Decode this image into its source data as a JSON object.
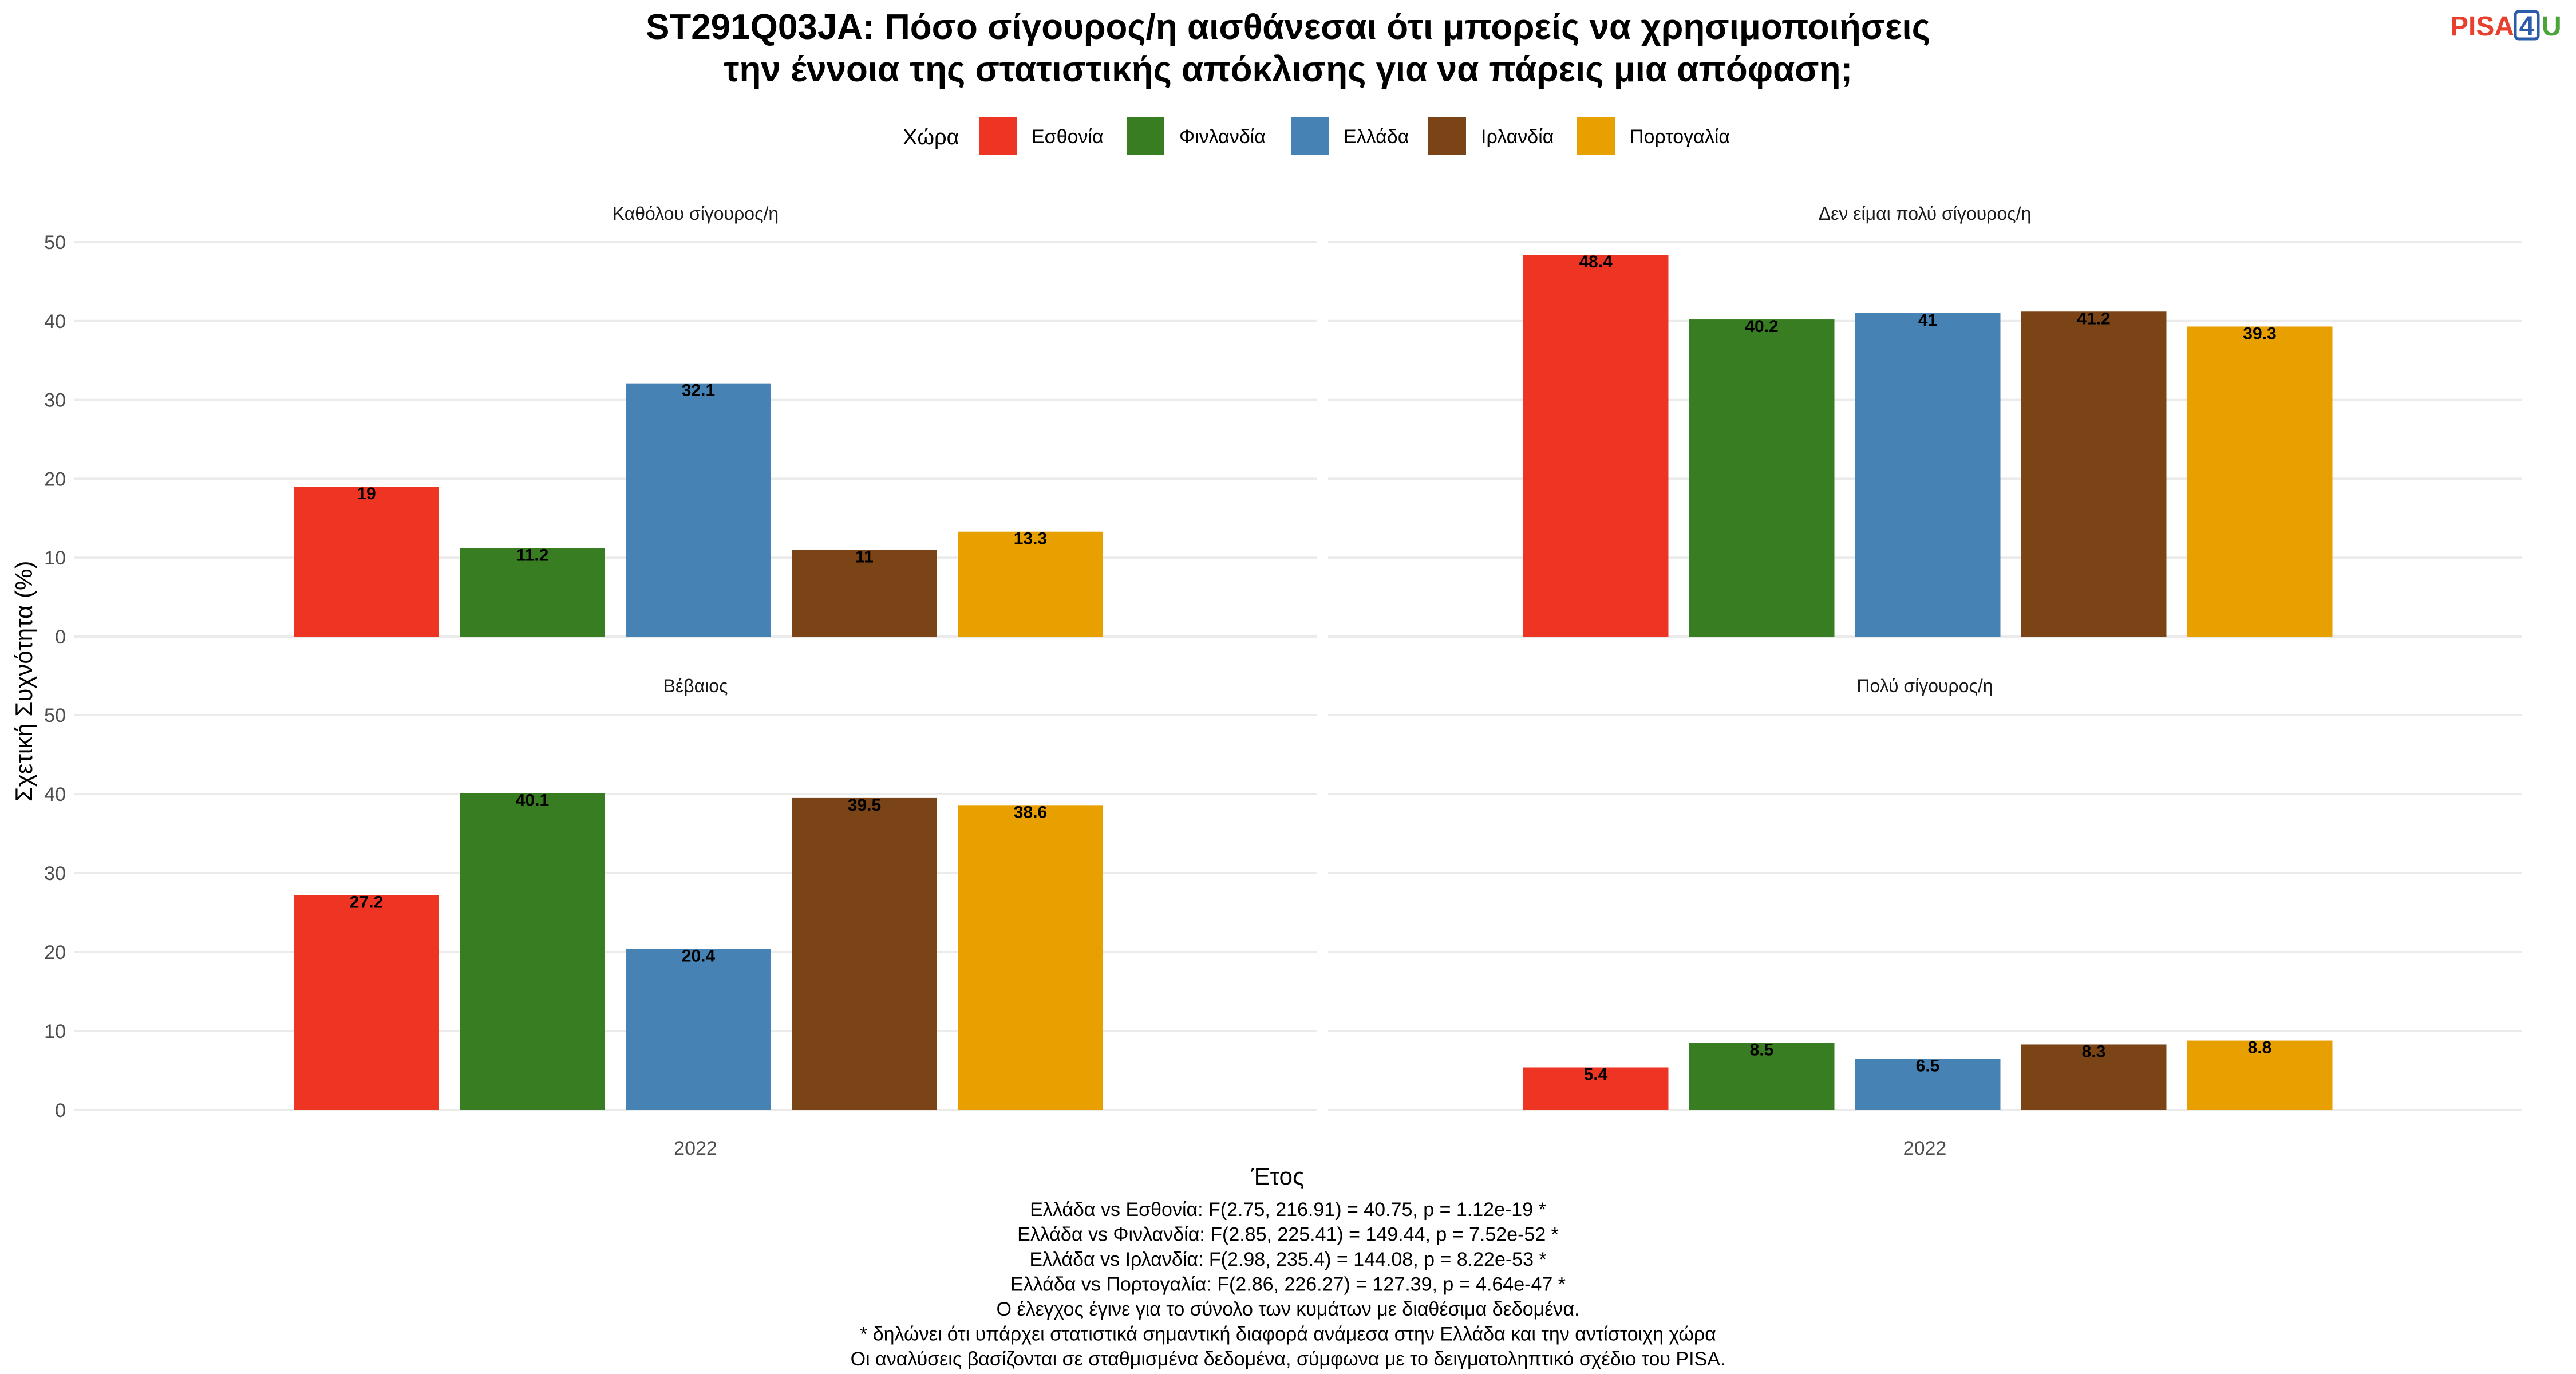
{
  "title_lines": [
    "ST291Q03JA: Πόσο σίγουρος/η αισθάνεσαι ότι μπορείς να χρησιμοποιήσεις",
    "την έννοια της στατιστικής απόκλισης για να πάρεις μια απόφαση;"
  ],
  "logo": {
    "text": "PISA",
    "digit": "4",
    "letter": "U",
    "colors": {
      "text": "#e8402e",
      "digit": "#2a5caa",
      "letter": "#4aa43a"
    }
  },
  "legend": {
    "title": "Χώρα",
    "items": [
      {
        "label": "Εσθονία",
        "color": "#ee3524"
      },
      {
        "label": "Φινλανδία",
        "color": "#387d22"
      },
      {
        "label": "Ελλάδα",
        "color": "#4682b4"
      },
      {
        "label": "Ιρλανδία",
        "color": "#7a4416"
      },
      {
        "label": "Πορτογαλία",
        "color": "#e8a000"
      }
    ]
  },
  "chart_data": {
    "type": "bar",
    "facets": [
      {
        "title": "Καθόλου σίγουρος/η",
        "values": [
          19,
          11.2,
          32.1,
          11,
          13.3
        ],
        "labels": [
          "19",
          "11.2",
          "32.1",
          "11",
          "13.3"
        ]
      },
      {
        "title": "Δεν είμαι πολύ σίγουρος/η",
        "values": [
          48.4,
          40.2,
          41,
          41.2,
          39.3
        ],
        "labels": [
          "48.4",
          "40.2",
          "41",
          "41.2",
          "39.3"
        ]
      },
      {
        "title": "Βέβαιος",
        "values": [
          27.2,
          40.1,
          20.4,
          39.5,
          38.6
        ],
        "labels": [
          "27.2",
          "40.1",
          "20.4",
          "39.5",
          "38.6"
        ]
      },
      {
        "title": "Πολύ σίγουρος/η",
        "values": [
          5.4,
          8.5,
          6.5,
          8.3,
          8.8
        ],
        "labels": [
          "5.4",
          "8.5",
          "6.5",
          "8.3",
          "8.8"
        ]
      }
    ],
    "series": [
      "Εσθονία",
      "Φινλανδία",
      "Ελλάδα",
      "Ιρλανδία",
      "Πορτογαλία"
    ],
    "x_category": "2022",
    "xlabel": "Έτος",
    "ylabel": "Σχετική Συχνότητα (%)",
    "ylim": [
      0,
      50
    ],
    "yticks": [
      "0",
      "10",
      "20",
      "30",
      "40",
      "50"
    ],
    "grid": true,
    "legend_position": "top"
  },
  "footnotes": [
    "Ελλάδα vs Εσθονία: F(2.75, 216.91) = 40.75, p = 1.12e-19 *",
    "Ελλάδα vs Φινλανδία: F(2.85, 225.41) = 149.44, p = 7.52e-52 *",
    "Ελλάδα vs Ιρλανδία: F(2.98, 235.4) = 144.08, p = 8.22e-53 *",
    "Ελλάδα vs Πορτογαλία: F(2.86, 226.27) = 127.39, p = 4.64e-47 *",
    "Ο έλεγχος έγινε για το σύνολο των κυμάτων με διαθέσιμα δεδομένα.",
    "* δηλώνει ότι υπάρχει στατιστικά σημαντική διαφορά ανάμεσα στην Ελλάδα και την αντίστοιχη χώρα",
    "Οι αναλύσεις βασίζονται σε σταθμισμένα δεδομένα, σύμφωνα με το δειγματοληπτικό σχέδιο του PISA."
  ]
}
